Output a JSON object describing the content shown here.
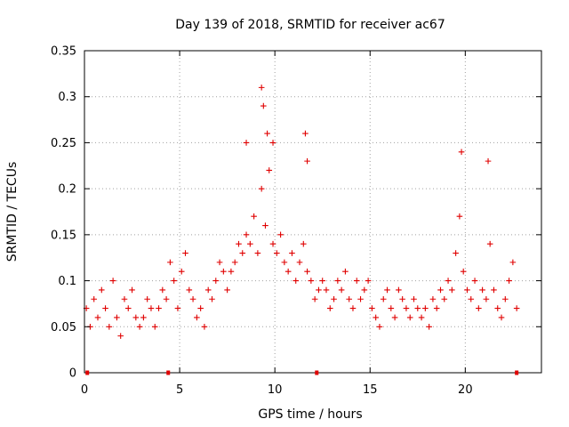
{
  "chart_data": {
    "type": "scatter",
    "title": "Day 139 of 2018, SRMTID for receiver ac67",
    "xlabel": "GPS time / hours",
    "ylabel": "SRMTID / TECUs",
    "xlim": [
      0,
      24
    ],
    "ylim": [
      0,
      0.35
    ],
    "xticks": [
      0,
      5,
      10,
      15,
      20
    ],
    "xtick_labels": [
      "0",
      "5",
      "10",
      "15",
      "20"
    ],
    "yticks": [
      0,
      0.05,
      0.1,
      0.15,
      0.2,
      0.25,
      0.3,
      0.35
    ],
    "ytick_labels": [
      "0",
      "0.05",
      "0.1",
      "0.15",
      "0.2",
      "0.25",
      "0.3",
      "0.35"
    ],
    "grid": true,
    "marker": "+",
    "color": "#e00000",
    "series": [
      {
        "name": "SRMTID",
        "x": [
          0.1,
          0.3,
          0.5,
          0.7,
          0.9,
          1.1,
          1.3,
          1.5,
          1.7,
          1.9,
          2.1,
          2.3,
          2.5,
          2.7,
          2.9,
          3.1,
          3.3,
          3.5,
          3.7,
          3.9,
          4.1,
          4.3,
          4.5,
          4.7,
          4.9,
          5.1,
          5.3,
          5.5,
          5.7,
          5.9,
          6.1,
          6.3,
          6.5,
          6.7,
          6.9,
          7.1,
          7.3,
          7.5,
          7.7,
          7.9,
          8.1,
          8.3,
          8.5,
          8.7,
          8.9,
          9.1,
          9.3,
          9.5,
          9.7,
          9.9,
          10.1,
          10.3,
          10.5,
          10.7,
          10.9,
          11.1,
          11.3,
          11.5,
          11.7,
          11.9,
          12.1,
          12.3,
          12.5,
          12.7,
          12.9,
          13.1,
          13.3,
          13.5,
          13.7,
          13.9,
          14.1,
          14.3,
          14.5,
          14.7,
          14.9,
          15.1,
          15.3,
          15.5,
          15.7,
          15.9,
          16.1,
          16.3,
          16.5,
          16.7,
          16.9,
          17.1,
          17.3,
          17.5,
          17.7,
          17.9,
          18.1,
          18.3,
          18.5,
          18.7,
          18.9,
          19.1,
          19.3,
          19.5,
          19.7,
          19.9,
          20.1,
          20.3,
          20.5,
          20.7,
          20.9,
          21.1,
          21.3,
          21.5,
          21.7,
          21.9,
          22.1,
          22.3,
          22.5,
          22.7,
          9.3,
          9.4,
          9.6,
          9.9,
          11.6,
          11.7,
          8.5,
          19.8,
          21.2
        ],
        "y": [
          0.07,
          0.05,
          0.08,
          0.06,
          0.09,
          0.07,
          0.05,
          0.1,
          0.06,
          0.04,
          0.08,
          0.07,
          0.09,
          0.06,
          0.05,
          0.06,
          0.08,
          0.07,
          0.05,
          0.07,
          0.09,
          0.08,
          0.12,
          0.1,
          0.07,
          0.11,
          0.13,
          0.09,
          0.08,
          0.06,
          0.07,
          0.05,
          0.09,
          0.08,
          0.1,
          0.12,
          0.11,
          0.09,
          0.11,
          0.12,
          0.14,
          0.13,
          0.15,
          0.14,
          0.17,
          0.13,
          0.2,
          0.16,
          0.22,
          0.14,
          0.13,
          0.15,
          0.12,
          0.11,
          0.13,
          0.1,
          0.12,
          0.14,
          0.11,
          0.1,
          0.08,
          0.09,
          0.1,
          0.09,
          0.07,
          0.08,
          0.1,
          0.09,
          0.11,
          0.08,
          0.07,
          0.1,
          0.08,
          0.09,
          0.1,
          0.07,
          0.06,
          0.05,
          0.08,
          0.09,
          0.07,
          0.06,
          0.09,
          0.08,
          0.07,
          0.06,
          0.08,
          0.07,
          0.06,
          0.07,
          0.05,
          0.08,
          0.07,
          0.09,
          0.08,
          0.1,
          0.09,
          0.13,
          0.17,
          0.11,
          0.09,
          0.08,
          0.1,
          0.07,
          0.09,
          0.08,
          0.14,
          0.09,
          0.07,
          0.06,
          0.08,
          0.1,
          0.12,
          0.07,
          0.31,
          0.29,
          0.26,
          0.25,
          0.26,
          0.23,
          0.25,
          0.24,
          0.23
        ]
      }
    ],
    "axis_markers_x": [
      0.15,
      4.4,
      12.2,
      22.7
    ]
  }
}
